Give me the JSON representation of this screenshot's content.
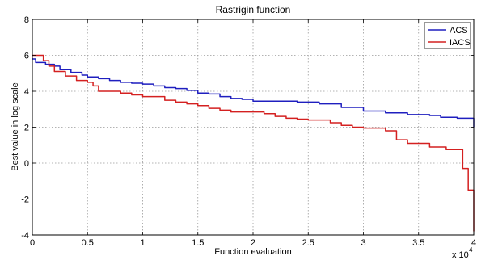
{
  "chart_data": {
    "type": "line",
    "title": "Rastrigin function",
    "xlabel": "Function evaluation",
    "ylabel": "Best value in log scale",
    "x_multiplier_label": "x 10",
    "x_multiplier_exponent": "4",
    "xlim": [
      0,
      4
    ],
    "ylim": [
      -4,
      8
    ],
    "xticks": [
      "0",
      "0.5",
      "1",
      "1.5",
      "2",
      "2.5",
      "3",
      "3.5",
      "4"
    ],
    "yticks": [
      "-4",
      "-2",
      "0",
      "2",
      "4",
      "6",
      "8"
    ],
    "grid": true,
    "legend_position": "top-right",
    "series": [
      {
        "name": "ACS",
        "color": "#1f1fbf",
        "x": [
          0,
          0.03,
          0.08,
          0.12,
          0.2,
          0.25,
          0.3,
          0.35,
          0.45,
          0.5,
          0.6,
          0.7,
          0.8,
          0.9,
          1.0,
          1.1,
          1.2,
          1.3,
          1.4,
          1.5,
          1.6,
          1.7,
          1.8,
          1.9,
          2.0,
          2.2,
          2.4,
          2.6,
          2.8,
          3.0,
          3.2,
          3.4,
          3.6,
          3.7,
          3.85,
          3.95,
          4.0
        ],
        "y": [
          5.8,
          5.6,
          5.6,
          5.5,
          5.4,
          5.2,
          5.2,
          5.05,
          4.9,
          4.8,
          4.7,
          4.6,
          4.5,
          4.45,
          4.4,
          4.3,
          4.2,
          4.15,
          4.05,
          3.9,
          3.85,
          3.7,
          3.6,
          3.55,
          3.45,
          3.45,
          3.4,
          3.3,
          3.1,
          2.9,
          2.8,
          2.7,
          2.65,
          2.55,
          2.5,
          2.5,
          2.0
        ]
      },
      {
        "name": "IACS",
        "color": "#d42020",
        "x": [
          0,
          0.05,
          0.1,
          0.15,
          0.2,
          0.3,
          0.4,
          0.5,
          0.55,
          0.6,
          0.7,
          0.8,
          0.9,
          1.0,
          1.1,
          1.2,
          1.3,
          1.4,
          1.5,
          1.6,
          1.7,
          1.8,
          2.0,
          2.1,
          2.2,
          2.3,
          2.4,
          2.5,
          2.7,
          2.8,
          2.9,
          3.0,
          3.1,
          3.2,
          3.3,
          3.4,
          3.6,
          3.75,
          3.9,
          3.95,
          4.0
        ],
        "y": [
          6.0,
          6.0,
          5.7,
          5.4,
          5.1,
          4.85,
          4.6,
          4.5,
          4.3,
          4.0,
          4.0,
          3.9,
          3.8,
          3.7,
          3.7,
          3.5,
          3.4,
          3.3,
          3.2,
          3.05,
          2.95,
          2.85,
          2.85,
          2.75,
          2.6,
          2.5,
          2.45,
          2.4,
          2.25,
          2.1,
          2.0,
          1.95,
          1.95,
          1.8,
          1.3,
          1.1,
          0.9,
          0.75,
          -0.3,
          -1.5,
          -3.8
        ]
      }
    ]
  }
}
